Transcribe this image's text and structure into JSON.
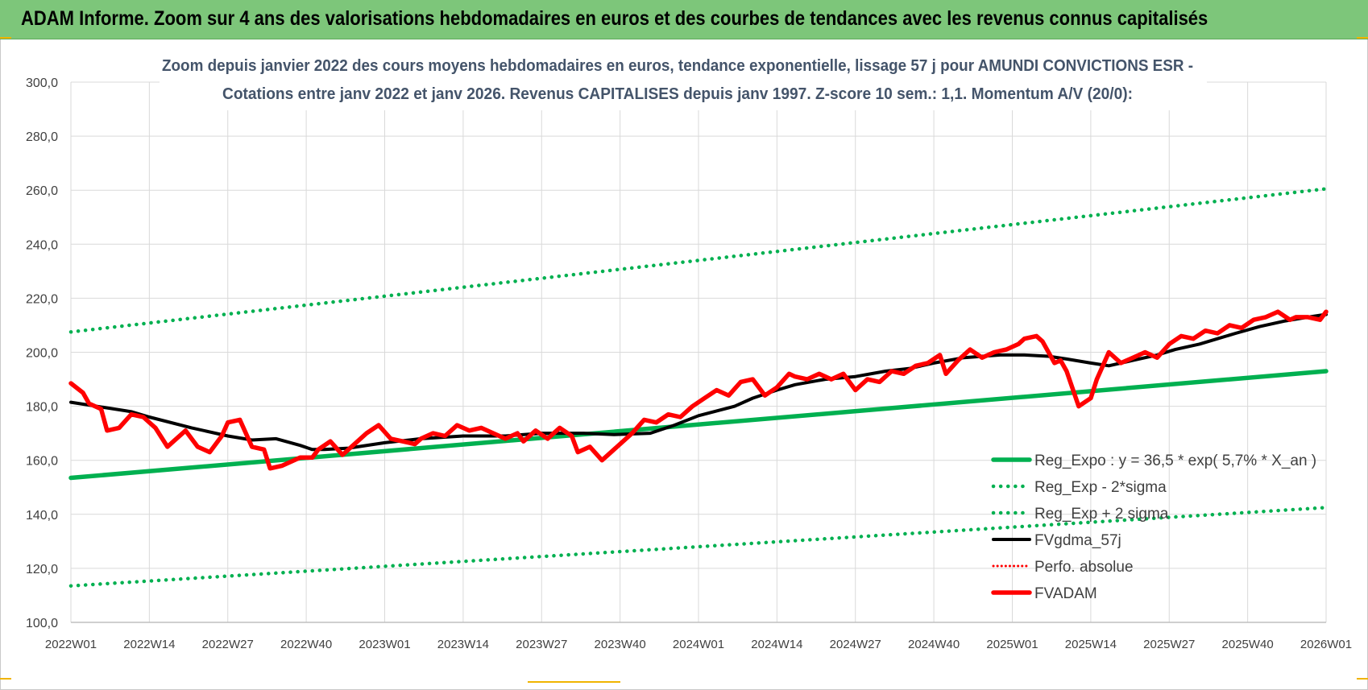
{
  "banner": {
    "title": "ADAM Informe. Zoom sur 4 ans des valorisations hebdomadaires en euros et des courbes de tendances avec les revenus connus capitalisés"
  },
  "colors": {
    "banner_bg": "#7dc67a",
    "regression": "#00b050",
    "fvgdma": "#000000",
    "fvadam": "#ff0000",
    "perfo": "#ff0000",
    "grid": "#d9d9d9"
  },
  "chart_data": {
    "type": "line",
    "title_lines": [
      "Zoom depuis janvier 2022 des cours moyens hebdomadaires en euros, tendance exponentielle, lissage 57 j pour AMUNDI CONVICTIONS ESR -",
      "Cotations entre janv 2022 et janv 2026. Revenus CAPITALISES depuis janv 1997. Z-score 10 sem.: 1,1. Momentum A/V (20/0):"
    ],
    "ylim": [
      100,
      300
    ],
    "ytick_labels": [
      "100,0",
      "120,0",
      "140,0",
      "160,0",
      "180,0",
      "200,0",
      "220,0",
      "240,0",
      "260,0",
      "280,0",
      "300,0"
    ],
    "xtick_labels": [
      "2022W01",
      "2022W14",
      "2022W27",
      "2022W40",
      "2023W01",
      "2023W14",
      "2023W27",
      "2023W40",
      "2024W01",
      "2024W14",
      "2024W27",
      "2024W40",
      "2025W01",
      "2025W14",
      "2025W27",
      "2025W40",
      "2026W01"
    ],
    "grid": true,
    "legend_position": "bottom-right",
    "series": [
      {
        "name": "Reg_Expo : y = 36,5 * exp( 5,7% *  X_an )",
        "style": "solid-thick",
        "color": "#00b050",
        "x": [
          0,
          208
        ],
        "values": [
          153.5,
          193
        ]
      },
      {
        "name": "Reg_Exp - 2*sigma",
        "style": "dotted",
        "color": "#00b050",
        "x": [
          0,
          208
        ],
        "values": [
          113.5,
          142.5
        ]
      },
      {
        "name": "Reg_Exp + 2 sigma",
        "style": "dotted",
        "color": "#00b050",
        "x": [
          0,
          208
        ],
        "values": [
          207.5,
          260.5
        ]
      },
      {
        "name": "FVgdma_57j",
        "style": "solid",
        "color": "#000000",
        "x": [
          0,
          10,
          13,
          20,
          26,
          30,
          34,
          38,
          40,
          42,
          46,
          52,
          58,
          65,
          72,
          78,
          85,
          90,
          96,
          100,
          104,
          110,
          113,
          117,
          120,
          125,
          130,
          135,
          139,
          143,
          148,
          154,
          158,
          162,
          165,
          169,
          172,
          176,
          180,
          183,
          187,
          190,
          193,
          197,
          201,
          205,
          208
        ],
        "values": [
          181.5,
          178,
          176,
          172,
          169,
          167.5,
          168,
          165.5,
          164,
          164,
          164.5,
          166.5,
          168,
          169,
          169,
          170,
          170,
          169.5,
          170,
          173,
          176.5,
          180,
          183,
          186,
          188,
          190,
          191,
          193,
          194,
          196,
          198,
          199,
          199,
          198.5,
          197.5,
          196,
          195,
          197,
          199,
          201,
          203,
          205,
          207,
          209.5,
          211.5,
          213,
          214
        ]
      },
      {
        "name": "Perfo. absolue",
        "style": "dotted",
        "color": "#ff0000",
        "x": [],
        "values": []
      },
      {
        "name": "FVADAM",
        "style": "solid-thick",
        "color": "#ff0000",
        "x": [
          0,
          2,
          3,
          5,
          6,
          8,
          10,
          12,
          14,
          16,
          17,
          19,
          21,
          23,
          25,
          26,
          28,
          30,
          32,
          33,
          35,
          38,
          40,
          41,
          43,
          45,
          47,
          49,
          51,
          53,
          55,
          57,
          58,
          60,
          62,
          64,
          66,
          68,
          70,
          72,
          74,
          75,
          77,
          79,
          81,
          83,
          84,
          86,
          88,
          90,
          91,
          93,
          95,
          97,
          99,
          101,
          103,
          105,
          107,
          109,
          111,
          113,
          115,
          117,
          119,
          120,
          122,
          124,
          126,
          128,
          130,
          132,
          134,
          136,
          138,
          140,
          142,
          144,
          145,
          147,
          149,
          151,
          153,
          155,
          157,
          158,
          160,
          161,
          163,
          164,
          165,
          167,
          169,
          170,
          171,
          172,
          174,
          176,
          178,
          180,
          182,
          184,
          186,
          188,
          190,
          192,
          194,
          196,
          198,
          200,
          202,
          203,
          205,
          207,
          208
        ],
        "values": [
          188.5,
          185,
          181,
          179,
          171,
          172,
          177,
          176,
          172,
          165,
          167,
          171,
          165,
          163,
          169,
          174,
          175,
          165,
          164,
          157,
          158,
          161,
          161,
          164,
          167,
          162,
          166,
          170,
          173,
          168,
          167,
          166,
          168,
          170,
          169,
          173,
          171,
          172,
          170,
          168,
          170,
          167,
          171,
          168,
          172,
          169,
          163,
          165,
          160,
          164,
          166,
          170,
          175,
          174,
          177,
          176,
          180,
          183,
          186,
          184,
          189,
          190,
          184,
          187,
          192,
          191,
          190,
          192,
          190,
          192,
          186,
          190,
          189,
          193,
          192,
          195,
          196,
          199,
          192,
          197,
          201,
          198,
          200,
          201,
          203,
          205,
          206,
          204,
          196,
          197,
          193,
          180,
          183,
          190,
          195,
          200,
          196,
          198,
          200,
          198,
          203,
          206,
          205,
          208,
          207,
          210,
          209,
          212,
          213,
          215,
          212,
          213,
          213,
          212,
          215
        ]
      }
    ]
  }
}
